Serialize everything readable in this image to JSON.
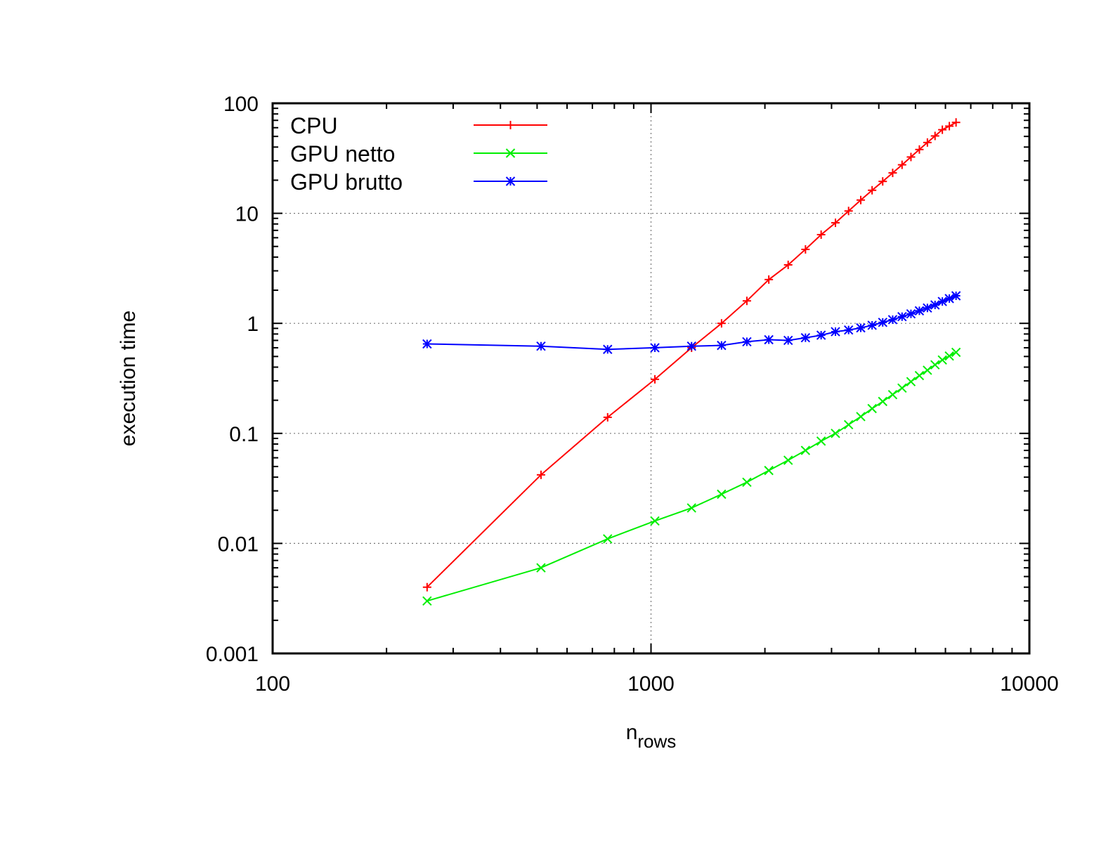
{
  "chart_data": {
    "type": "line",
    "title": "",
    "xlabel": "n",
    "xlabel_subscript": "rows",
    "ylabel": "execution time",
    "x_scale": "log",
    "y_scale": "log",
    "xlim": [
      100,
      10000
    ],
    "ylim": [
      0.001,
      100
    ],
    "x_ticks": [
      "100",
      "1000",
      "10000"
    ],
    "y_ticks": [
      "0.001",
      "0.01",
      "0.1",
      "1",
      "10",
      "100"
    ],
    "grid": "dotted at major ticks",
    "legend_position": "top-left",
    "series": [
      {
        "name": "CPU",
        "color": "#ff0000",
        "marker": "plus",
        "x": [
          256,
          512,
          768,
          1024,
          1280,
          1536,
          1792,
          2048,
          2304,
          2560,
          2816,
          3072,
          3328,
          3584,
          3840,
          4096,
          4352,
          4608,
          4864,
          5120,
          5376,
          5632,
          5888,
          6144,
          6400
        ],
        "y": [
          0.004,
          0.042,
          0.14,
          0.31,
          0.6,
          1.0,
          1.6,
          2.5,
          3.4,
          4.7,
          6.4,
          8.2,
          10.5,
          13.2,
          16.2,
          19.5,
          23.3,
          27.6,
          32.5,
          38.0,
          44.0,
          50.5,
          57.5,
          62.0,
          67.0
        ]
      },
      {
        "name": "GPU netto",
        "color": "#00ee00",
        "marker": "cross",
        "x": [
          256,
          512,
          768,
          1024,
          1280,
          1536,
          1792,
          2048,
          2304,
          2560,
          2816,
          3072,
          3328,
          3584,
          3840,
          4096,
          4352,
          4608,
          4864,
          5120,
          5376,
          5632,
          5888,
          6144,
          6400
        ],
        "y": [
          0.003,
          0.006,
          0.011,
          0.016,
          0.021,
          0.028,
          0.036,
          0.046,
          0.057,
          0.07,
          0.085,
          0.1,
          0.12,
          0.142,
          0.168,
          0.195,
          0.225,
          0.258,
          0.295,
          0.335,
          0.375,
          0.42,
          0.465,
          0.505,
          0.545
        ]
      },
      {
        "name": "GPU brutto",
        "color": "#0000ff",
        "marker": "star",
        "x": [
          256,
          512,
          768,
          1024,
          1280,
          1536,
          1792,
          2048,
          2304,
          2560,
          2816,
          3072,
          3328,
          3584,
          3840,
          4096,
          4352,
          4608,
          4864,
          5120,
          5376,
          5632,
          5888,
          6144,
          6400
        ],
        "y": [
          0.65,
          0.62,
          0.58,
          0.6,
          0.62,
          0.63,
          0.68,
          0.71,
          0.7,
          0.74,
          0.78,
          0.84,
          0.87,
          0.91,
          0.96,
          1.02,
          1.08,
          1.15,
          1.22,
          1.3,
          1.38,
          1.47,
          1.58,
          1.68,
          1.78
        ]
      }
    ]
  }
}
